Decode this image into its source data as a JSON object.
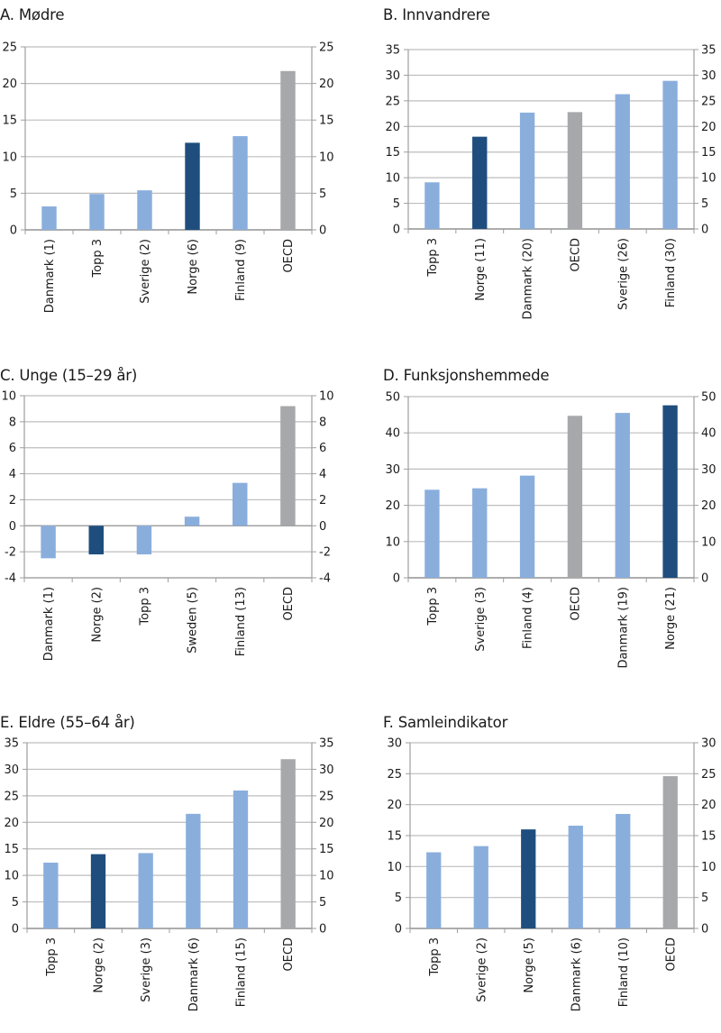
{
  "colors": {
    "norway": "#1f4e7e",
    "other": "#8aaedc",
    "oecd": "#a7a8ab",
    "grid": "#bdbdbd",
    "axis": "#9e9e9e"
  },
  "chart_data": [
    {
      "id": "A",
      "type": "bar",
      "title": "A. Mødre",
      "categories": [
        "Danmark (1)",
        "Topp 3",
        "Sverige (2)",
        "Norge (6)",
        "Finland (9)",
        "OECD"
      ],
      "values": [
        3.2,
        4.9,
        5.4,
        11.9,
        12.8,
        21.7
      ],
      "highlight": [
        "other",
        "other",
        "other",
        "norway",
        "other",
        "oecd"
      ],
      "ylim": [
        0,
        25
      ],
      "yticks": [
        0,
        5,
        10,
        15,
        20,
        25
      ],
      "xlabel": "",
      "ylabel": "",
      "grid": true,
      "secondary_axis": true
    },
    {
      "id": "B",
      "type": "bar",
      "title": "B. Innvandrere",
      "categories": [
        "Topp 3",
        "Norge (11)",
        "Danmark (20)",
        "OECD",
        "Sverige (26)",
        "Finland (30)"
      ],
      "values": [
        9.1,
        18.0,
        22.7,
        22.8,
        26.3,
        28.9
      ],
      "highlight": [
        "other",
        "norway",
        "other",
        "oecd",
        "other",
        "other"
      ],
      "ylim": [
        0,
        35
      ],
      "yticks": [
        0,
        5,
        10,
        15,
        20,
        25,
        30,
        35
      ],
      "xlabel": "",
      "ylabel": "",
      "grid": true,
      "secondary_axis": true
    },
    {
      "id": "C",
      "type": "bar",
      "title": "C. Unge (15–29 år)",
      "categories": [
        "Danmark (1)",
        "Norge (2)",
        "Topp 3",
        "Sweden (5)",
        "Finland (13)",
        "OECD"
      ],
      "values": [
        -2.5,
        -2.2,
        -2.2,
        0.7,
        3.3,
        9.2
      ],
      "highlight": [
        "other",
        "norway",
        "other",
        "other",
        "other",
        "oecd"
      ],
      "ylim": [
        -4,
        10
      ],
      "yticks": [
        -4,
        -2,
        0,
        2,
        4,
        6,
        8,
        10
      ],
      "xlabel": "",
      "ylabel": "",
      "grid": true,
      "secondary_axis": true
    },
    {
      "id": "D",
      "type": "bar",
      "title": "D. Funksjonshemmede",
      "categories": [
        "Topp 3",
        "Sverige (3)",
        "Finland (4)",
        "OECD",
        "Danmark (19)",
        "Norge (21)"
      ],
      "values": [
        24.3,
        24.7,
        28.2,
        44.7,
        45.5,
        47.6
      ],
      "highlight": [
        "other",
        "other",
        "other",
        "oecd",
        "other",
        "norway"
      ],
      "ylim": [
        0,
        50
      ],
      "yticks": [
        0,
        10,
        20,
        30,
        40,
        50
      ],
      "xlabel": "",
      "ylabel": "",
      "grid": true,
      "secondary_axis": true
    },
    {
      "id": "E",
      "type": "bar",
      "title": "E. Eldre (55–64 år)",
      "categories": [
        "Topp 3",
        "Norge (2)",
        "Sverige (3)",
        "Danmark (6)",
        "Finland (15)",
        "OECD"
      ],
      "values": [
        12.4,
        14.0,
        14.2,
        21.6,
        26.0,
        31.9
      ],
      "highlight": [
        "other",
        "norway",
        "other",
        "other",
        "other",
        "oecd"
      ],
      "ylim": [
        0,
        35
      ],
      "yticks": [
        0,
        5,
        10,
        15,
        20,
        25,
        30,
        35
      ],
      "xlabel": "",
      "ylabel": "",
      "grid": true,
      "secondary_axis": true
    },
    {
      "id": "F",
      "type": "bar",
      "title": "F. Samleindikator",
      "categories": [
        "Topp 3",
        "Sverige (2)",
        "Norge (5)",
        "Danmark (6)",
        "Finland (10)",
        "OECD"
      ],
      "values": [
        12.3,
        13.3,
        16.0,
        16.6,
        18.5,
        24.6
      ],
      "highlight": [
        "other",
        "other",
        "norway",
        "other",
        "other",
        "oecd"
      ],
      "ylim": [
        0,
        30
      ],
      "yticks": [
        0,
        5,
        10,
        15,
        20,
        25,
        30
      ],
      "xlabel": "",
      "ylabel": "",
      "grid": true,
      "secondary_axis": true
    }
  ]
}
